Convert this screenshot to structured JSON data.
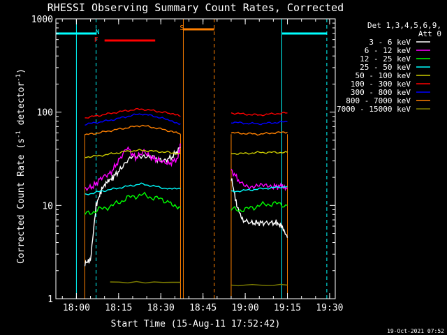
{
  "chart_data": {
    "type": "line",
    "title": "RHESSI Observing Summary Count Rates, Corrected",
    "xlabel": "Start Time (15-Aug-11 17:52:42)",
    "ylabel_main": "Corrected Count Rate (s",
    "ylabel_sup1": "-1",
    "ylabel_mid": " detector",
    "ylabel_sup2": "-1",
    "ylabel_end": ")",
    "yscale": "log",
    "ylim": [
      1,
      1000
    ],
    "xlim": [
      "17:52:42",
      "19:32:00"
    ],
    "xticks": [
      "18:00",
      "18:15",
      "18:30",
      "18:45",
      "19:00",
      "19:15",
      "19:30"
    ],
    "yticks": [
      "1",
      "10",
      "100",
      "1000"
    ],
    "legend_header": [
      "Det 1,3,4,5,6,9,",
      "Att 0"
    ],
    "grid": false,
    "legend_position": "right",
    "series": [
      {
        "name": "3 - 6 keV",
        "color": "#ffffff",
        "segments": [
          {
            "x": [
              "18:03",
              "18:05",
              "18:07",
              "18:09",
              "18:11",
              "18:13",
              "18:16",
              "18:20",
              "18:24",
              "18:28",
              "18:31",
              "18:34",
              "18:37"
            ],
            "y": [
              2.4,
              2.6,
              10,
              15,
              18,
              20,
              25,
              33,
              35,
              32,
              30,
              33,
              42
            ]
          },
          {
            "x": [
              "18:55",
              "18:57",
              "18:59",
              "19:02",
              "19:05",
              "19:08",
              "19:11",
              "19:13",
              "19:15"
            ],
            "y": [
              20,
              10,
              7,
              6.5,
              6.5,
              6.5,
              6.5,
              6,
              4.5
            ]
          }
        ]
      },
      {
        "name": "6 - 12 keV",
        "color": "#ff00ff",
        "segments": [
          {
            "x": [
              "18:03",
              "18:06",
              "18:09",
              "18:12",
              "18:15",
              "18:18",
              "18:21",
              "18:24",
              "18:27",
              "18:30",
              "18:33",
              "18:36",
              "18:37"
            ],
            "y": [
              15,
              16,
              20,
              22,
              30,
              42,
              32,
              38,
              32,
              30,
              28,
              32,
              45
            ]
          },
          {
            "x": [
              "18:55",
              "18:58",
              "19:02",
              "19:06",
              "19:10",
              "19:13",
              "19:15"
            ],
            "y": [
              24,
              18,
              16,
              16,
              16,
              16,
              15
            ]
          }
        ]
      },
      {
        "name": "12 - 25 keV",
        "color": "#00ff00",
        "segments": [
          {
            "x": [
              "18:03",
              "18:08",
              "18:13",
              "18:18",
              "18:23",
              "18:28",
              "18:33",
              "18:37"
            ],
            "y": [
              8,
              9,
              10,
              12,
              13,
              12,
              11,
              9.5
            ]
          },
          {
            "x": [
              "18:55",
              "19:00",
              "19:05",
              "19:10",
              "19:15"
            ],
            "y": [
              9,
              9,
              10,
              10.5,
              10
            ]
          }
        ]
      },
      {
        "name": "25 - 50 keV",
        "color": "#00ffff",
        "segments": [
          {
            "x": [
              "18:03",
              "18:08",
              "18:13",
              "18:18",
              "18:23",
              "18:28",
              "18:33",
              "18:37"
            ],
            "y": [
              13,
              14,
              15,
              16,
              17,
              16,
              15,
              15
            ]
          },
          {
            "x": [
              "18:55",
              "19:00",
              "19:05",
              "19:10",
              "19:15"
            ],
            "y": [
              14,
              14.5,
              15,
              15.5,
              16
            ]
          }
        ]
      },
      {
        "name": "50 - 100 keV",
        "color": "#cccc00",
        "segments": [
          {
            "x": [
              "18:03",
              "18:08",
              "18:13",
              "18:18",
              "18:23",
              "18:28",
              "18:33",
              "18:37"
            ],
            "y": [
              33,
              34,
              36,
              38,
              39,
              38,
              37,
              36
            ]
          },
          {
            "x": [
              "18:55",
              "19:00",
              "19:05",
              "19:10",
              "19:15"
            ],
            "y": [
              36,
              36,
              37,
              37,
              37
            ]
          }
        ]
      },
      {
        "name": "100 - 300 keV",
        "color": "#ff0000",
        "segments": [
          {
            "x": [
              "18:03",
              "18:08",
              "18:13",
              "18:18",
              "18:23",
              "18:28",
              "18:33",
              "18:37"
            ],
            "y": [
              87,
              92,
              98,
              104,
              108,
              103,
              97,
              90
            ]
          },
          {
            "x": [
              "18:55",
              "19:00",
              "19:05",
              "19:10",
              "19:15"
            ],
            "y": [
              98,
              95,
              93,
              96,
              98
            ]
          }
        ]
      },
      {
        "name": "300 - 800 keV",
        "color": "#0000ff",
        "segments": [
          {
            "x": [
              "18:03",
              "18:08",
              "18:13",
              "18:18",
              "18:23",
              "18:28",
              "18:33",
              "18:37"
            ],
            "y": [
              74,
              78,
              83,
              90,
              96,
              90,
              82,
              75
            ]
          },
          {
            "x": [
              "18:55",
              "19:00",
              "19:05",
              "19:10",
              "19:15"
            ],
            "y": [
              78,
              76,
              75,
              77,
              79
            ]
          }
        ]
      },
      {
        "name": "800 - 7000 keV",
        "color": "#ff8000",
        "segments": [
          {
            "x": [
              "18:03",
              "18:08",
              "18:13",
              "18:18",
              "18:23",
              "18:28",
              "18:33",
              "18:37"
            ],
            "y": [
              57,
              60,
              64,
              68,
              72,
              68,
              63,
              58
            ]
          },
          {
            "x": [
              "18:55",
              "19:00",
              "19:05",
              "19:10",
              "19:15"
            ],
            "y": [
              60,
              59,
              58,
              60,
              61
            ]
          }
        ]
      },
      {
        "name": "7000 - 15000 keV",
        "color": "#808000",
        "segments": [
          {
            "x": [
              "18:12",
              "18:37"
            ],
            "y": [
              1.5,
              1.5
            ]
          },
          {
            "x": [
              "18:55",
              "19:15"
            ],
            "y": [
              1.4,
              1.4
            ]
          }
        ]
      }
    ],
    "annotations": [
      {
        "label": "N",
        "color": "#00ffff"
      },
      {
        "label": "F",
        "color": "#ff0000"
      },
      {
        "label": "S",
        "color": "#ff8000"
      }
    ],
    "timestamp": "19-Oct-2021 07:52"
  }
}
